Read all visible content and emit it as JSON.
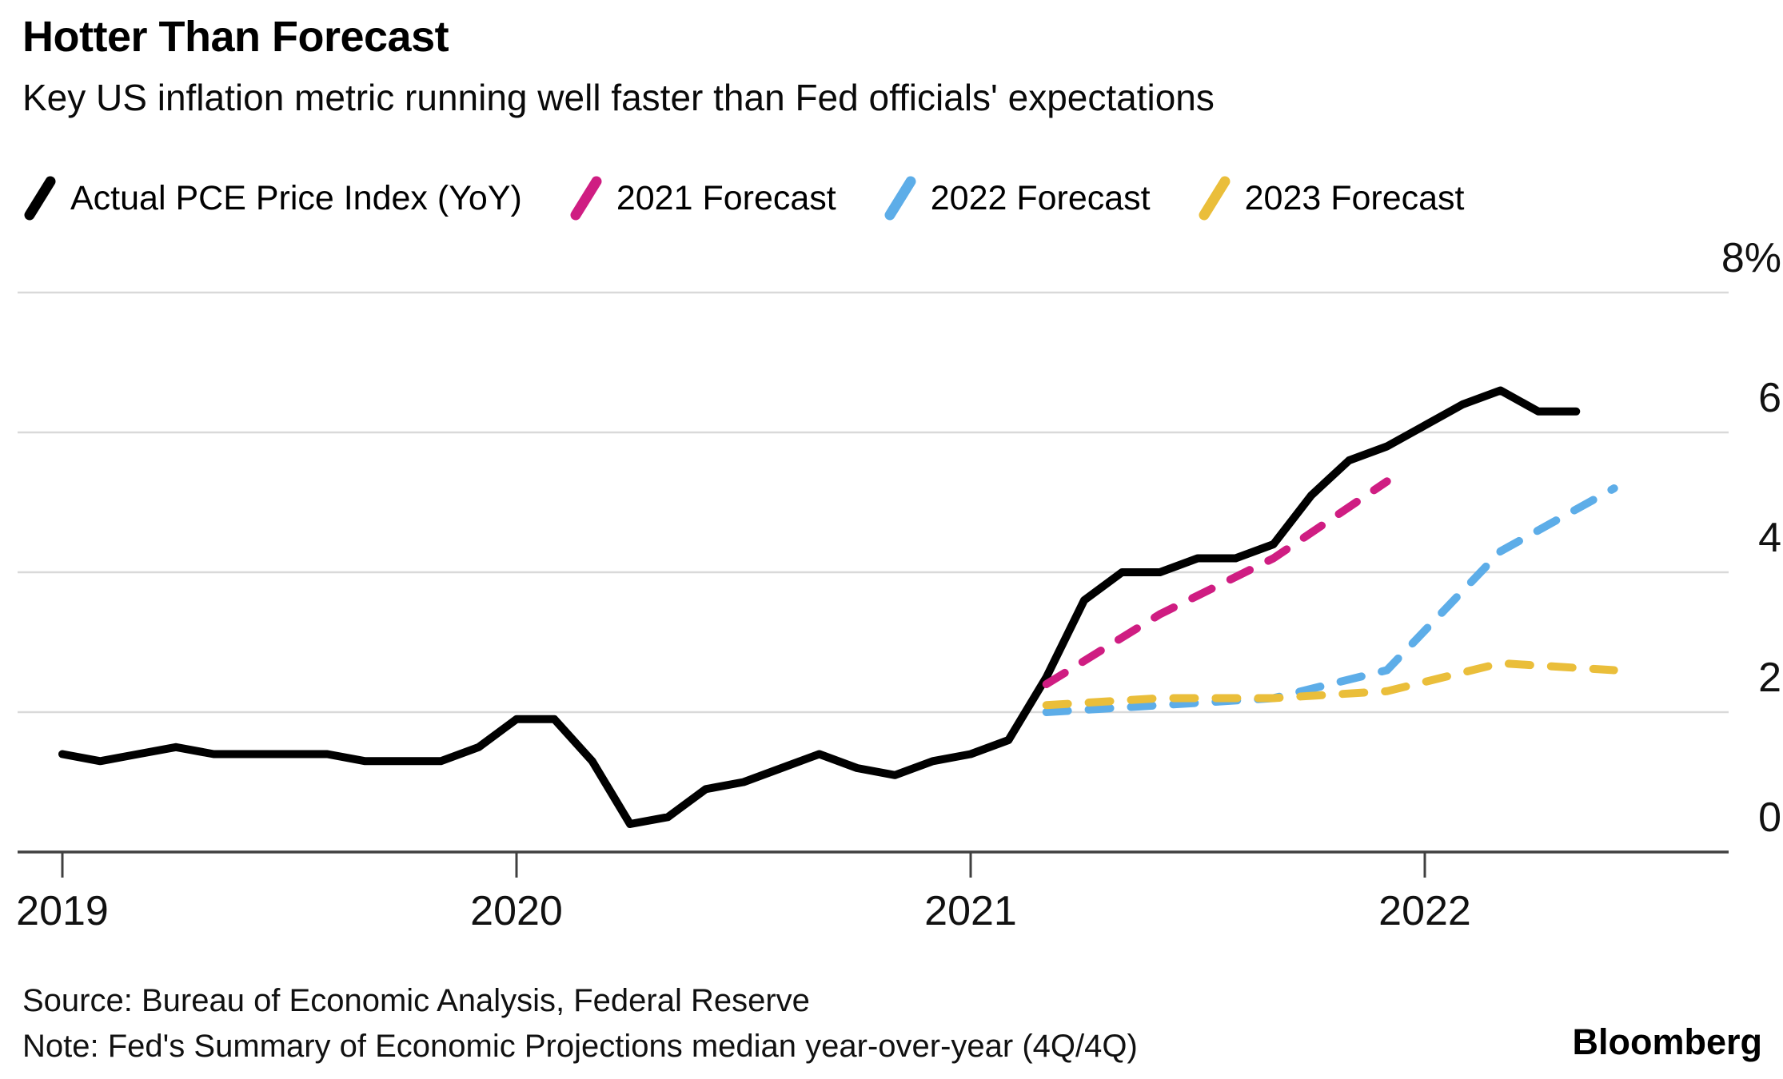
{
  "header": {
    "title": "Hotter Than Forecast",
    "subtitle": "Key US inflation metric running well faster than Fed officials' expectations"
  },
  "legend": {
    "items": [
      {
        "label": "Actual PCE Price Index (YoY)",
        "color": "#000000",
        "style": "solid"
      },
      {
        "label": "2021 Forecast",
        "color": "#cf1d82",
        "style": "dashed"
      },
      {
        "label": "2022 Forecast",
        "color": "#5dade8",
        "style": "dashed"
      },
      {
        "label": "2023 Forecast",
        "color": "#eabe3a",
        "style": "dashed"
      }
    ]
  },
  "chart_data": {
    "type": "line",
    "title": "Hotter Than Forecast",
    "subtitle": "Key US inflation metric running well faster than Fed officials' expectations",
    "xlabel": "",
    "ylabel": "%",
    "ylim": [
      0,
      8
    ],
    "x_domain": [
      "2019-01",
      "2022-09"
    ],
    "grid": "horizontal",
    "legend_position": "top",
    "y_ticks": [
      {
        "value": 8,
        "label": "8%"
      },
      {
        "value": 6,
        "label": "6"
      },
      {
        "value": 4,
        "label": "4"
      },
      {
        "value": 2,
        "label": "2"
      },
      {
        "value": 0,
        "label": "0"
      }
    ],
    "x_ticks": [
      {
        "value": 2019,
        "label": "2019"
      },
      {
        "value": 2020,
        "label": "2020"
      },
      {
        "value": 2021,
        "label": "2021"
      },
      {
        "value": 2022,
        "label": "2022"
      }
    ],
    "series": [
      {
        "name": "Actual PCE Price Index (YoY)",
        "color": "#000000",
        "style": "solid",
        "frequency": "monthly",
        "start": "2019-01",
        "values": [
          1.4,
          1.3,
          1.4,
          1.5,
          1.4,
          1.4,
          1.4,
          1.4,
          1.3,
          1.3,
          1.3,
          1.5,
          1.9,
          1.9,
          1.3,
          0.4,
          0.5,
          0.9,
          1.0,
          1.2,
          1.4,
          1.2,
          1.1,
          1.3,
          1.4,
          1.6,
          2.5,
          3.6,
          4.0,
          4.0,
          4.2,
          4.2,
          4.4,
          5.1,
          5.6,
          5.8,
          6.1,
          6.4,
          6.6,
          6.3,
          6.3
        ]
      },
      {
        "name": "2021 Forecast",
        "color": "#cf1d82",
        "style": "dashed",
        "points": [
          [
            "2021-03",
            2.4
          ],
          [
            "2021-06",
            3.4
          ],
          [
            "2021-09",
            4.2
          ],
          [
            "2021-12",
            5.3
          ]
        ]
      },
      {
        "name": "2022 Forecast",
        "color": "#5dade8",
        "style": "dashed",
        "points": [
          [
            "2021-03",
            2.0
          ],
          [
            "2021-06",
            2.1
          ],
          [
            "2021-09",
            2.2
          ],
          [
            "2021-12",
            2.6
          ],
          [
            "2022-03",
            4.3
          ],
          [
            "2022-06",
            5.2
          ]
        ]
      },
      {
        "name": "2023 Forecast",
        "color": "#eabe3a",
        "style": "dashed",
        "points": [
          [
            "2021-03",
            2.1
          ],
          [
            "2021-06",
            2.2
          ],
          [
            "2021-09",
            2.2
          ],
          [
            "2021-12",
            2.3
          ],
          [
            "2022-03",
            2.7
          ],
          [
            "2022-06",
            2.6
          ]
        ]
      }
    ]
  },
  "footer": {
    "source": "Source: Bureau of Economic Analysis, Federal Reserve",
    "note": "Note: Fed's Summary of Economic Projections median year-over-year (4Q/4Q)",
    "brand": "Bloomberg"
  }
}
